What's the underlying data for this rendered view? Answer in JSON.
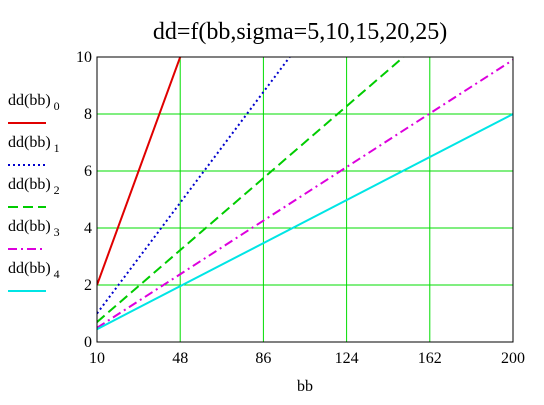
{
  "chart_data": {
    "type": "line",
    "title": "dd=f(bb,sigma=5,10,15,20,25)",
    "xlabel": "bb",
    "ylabel": "",
    "xlim": [
      10,
      200
    ],
    "ylim": [
      0,
      10
    ],
    "x_ticks": [
      10,
      48,
      86,
      124,
      162,
      200
    ],
    "y_ticks": [
      0,
      2,
      4,
      6,
      8,
      10
    ],
    "grid": true,
    "grid_color": "#00dd00",
    "legend_position": "left",
    "series": [
      {
        "name": "dd(bb)0",
        "legend_base": "dd(bb)",
        "legend_sub": "0",
        "color": "#e00000",
        "dash": "solid",
        "x": [
          10,
          48
        ],
        "y": [
          2.0,
          10.0
        ]
      },
      {
        "name": "dd(bb)1",
        "legend_base": "dd(bb)",
        "legend_sub": "1",
        "color": "#0000cc",
        "dash": "dotted",
        "x": [
          10,
          98
        ],
        "y": [
          1.0,
          10.0
        ]
      },
      {
        "name": "dd(bb)2",
        "legend_base": "dd(bb)",
        "legend_sub": "2",
        "color": "#00cc00",
        "dash": "dashed",
        "x": [
          10,
          150
        ],
        "y": [
          0.7,
          10.0
        ]
      },
      {
        "name": "dd(bb)3",
        "legend_base": "dd(bb)",
        "legend_sub": "3",
        "color": "#dd00dd",
        "dash": "dashdot",
        "x": [
          10,
          200
        ],
        "y": [
          0.5,
          9.9
        ]
      },
      {
        "name": "dd(bb)4",
        "legend_base": "dd(bb)",
        "legend_sub": "4",
        "color": "#00e5e5",
        "dash": "solid",
        "x": [
          10,
          200
        ],
        "y": [
          0.45,
          8.0
        ]
      }
    ]
  }
}
